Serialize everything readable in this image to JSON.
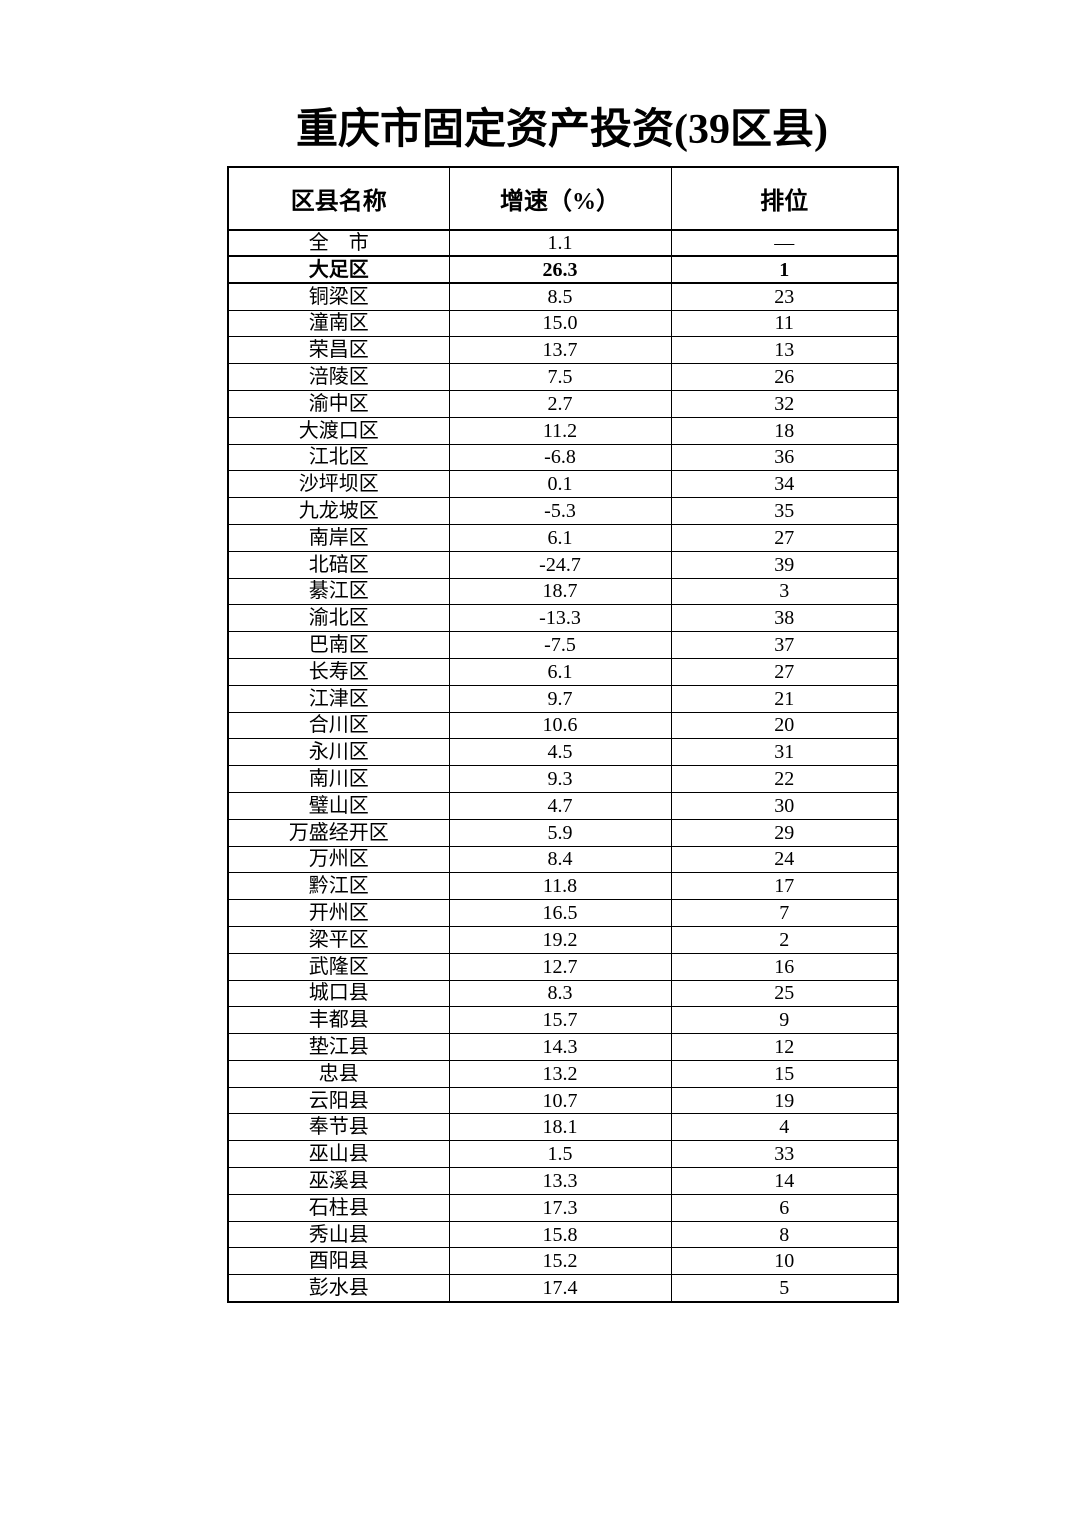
{
  "title": "重庆市固定资产投资(39区县)",
  "table": {
    "headers": [
      "区县名称",
      "增速（%）",
      "排位"
    ],
    "rows": [
      {
        "name": "全　市",
        "growth": "1.1",
        "rank": "—",
        "highlight": false
      },
      {
        "name": "大足区",
        "growth": "26.3",
        "rank": "1",
        "highlight": true
      },
      {
        "name": "铜梁区",
        "growth": "8.5",
        "rank": "23",
        "highlight": false
      },
      {
        "name": "潼南区",
        "growth": "15.0",
        "rank": "11",
        "highlight": false
      },
      {
        "name": "荣昌区",
        "growth": "13.7",
        "rank": "13",
        "highlight": false
      },
      {
        "name": "涪陵区",
        "growth": "7.5",
        "rank": "26",
        "highlight": false
      },
      {
        "name": "渝中区",
        "growth": "2.7",
        "rank": "32",
        "highlight": false
      },
      {
        "name": "大渡口区",
        "growth": "11.2",
        "rank": "18",
        "highlight": false
      },
      {
        "name": "江北区",
        "growth": "-6.8",
        "rank": "36",
        "highlight": false
      },
      {
        "name": "沙坪坝区",
        "growth": "0.1",
        "rank": "34",
        "highlight": false
      },
      {
        "name": "九龙坡区",
        "growth": "-5.3",
        "rank": "35",
        "highlight": false
      },
      {
        "name": "南岸区",
        "growth": "6.1",
        "rank": "27",
        "highlight": false
      },
      {
        "name": "北碚区",
        "growth": "-24.7",
        "rank": "39",
        "highlight": false
      },
      {
        "name": "綦江区",
        "growth": "18.7",
        "rank": "3",
        "highlight": false
      },
      {
        "name": "渝北区",
        "growth": "-13.3",
        "rank": "38",
        "highlight": false
      },
      {
        "name": "巴南区",
        "growth": "-7.5",
        "rank": "37",
        "highlight": false
      },
      {
        "name": "长寿区",
        "growth": "6.1",
        "rank": "27",
        "highlight": false
      },
      {
        "name": "江津区",
        "growth": "9.7",
        "rank": "21",
        "highlight": false
      },
      {
        "name": "合川区",
        "growth": "10.6",
        "rank": "20",
        "highlight": false
      },
      {
        "name": "永川区",
        "growth": "4.5",
        "rank": "31",
        "highlight": false
      },
      {
        "name": "南川区",
        "growth": "9.3",
        "rank": "22",
        "highlight": false
      },
      {
        "name": "璧山区",
        "growth": "4.7",
        "rank": "30",
        "highlight": false
      },
      {
        "name": "万盛经开区",
        "growth": "5.9",
        "rank": "29",
        "highlight": false
      },
      {
        "name": "万州区",
        "growth": "8.4",
        "rank": "24",
        "highlight": false
      },
      {
        "name": "黔江区",
        "growth": "11.8",
        "rank": "17",
        "highlight": false
      },
      {
        "name": "开州区",
        "growth": "16.5",
        "rank": "7",
        "highlight": false
      },
      {
        "name": "梁平区",
        "growth": "19.2",
        "rank": "2",
        "highlight": false
      },
      {
        "name": "武隆区",
        "growth": "12.7",
        "rank": "16",
        "highlight": false
      },
      {
        "name": "城口县",
        "growth": "8.3",
        "rank": "25",
        "highlight": false
      },
      {
        "name": "丰都县",
        "growth": "15.7",
        "rank": "9",
        "highlight": false
      },
      {
        "name": "垫江县",
        "growth": "14.3",
        "rank": "12",
        "highlight": false
      },
      {
        "name": "忠县",
        "growth": "13.2",
        "rank": "15",
        "highlight": false
      },
      {
        "name": "云阳县",
        "growth": "10.7",
        "rank": "19",
        "highlight": false
      },
      {
        "name": "奉节县",
        "growth": "18.1",
        "rank": "4",
        "highlight": false
      },
      {
        "name": "巫山县",
        "growth": "1.5",
        "rank": "33",
        "highlight": false
      },
      {
        "name": "巫溪县",
        "growth": "13.3",
        "rank": "14",
        "highlight": false
      },
      {
        "name": "石柱县",
        "growth": "17.3",
        "rank": "6",
        "highlight": false
      },
      {
        "name": "秀山县",
        "growth": "15.8",
        "rank": "8",
        "highlight": false
      },
      {
        "name": "酉阳县",
        "growth": "15.2",
        "rank": "10",
        "highlight": false
      },
      {
        "name": "彭水县",
        "growth": "17.4",
        "rank": "5",
        "highlight": false
      }
    ]
  }
}
